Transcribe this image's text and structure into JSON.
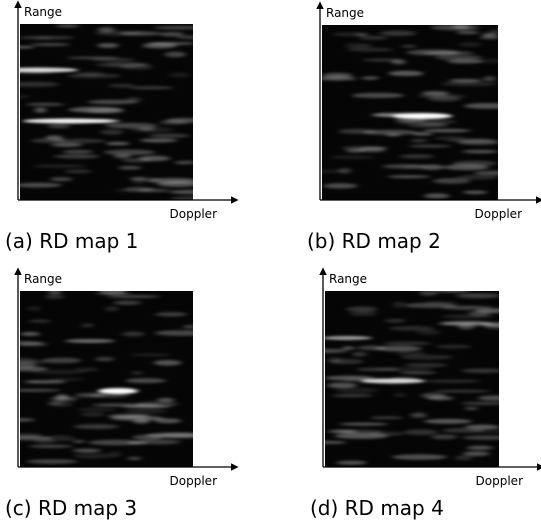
{
  "panels": [
    {
      "y_label": "Range",
      "x_label": "Doppler",
      "caption": "(a) RD map 1"
    },
    {
      "y_label": "Range",
      "x_label": "Doppler",
      "caption": "(b) RD map 2"
    },
    {
      "y_label": "Range",
      "x_label": "Doppler",
      "caption": "(c) RD map 3"
    },
    {
      "y_label": "Range",
      "x_label": "Doppler",
      "caption": "(d) RD map 4"
    }
  ]
}
